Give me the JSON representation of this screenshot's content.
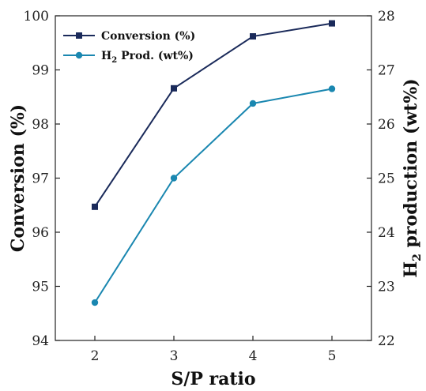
{
  "chart_data": {
    "type": "line",
    "xlabel": "S/P ratio",
    "ylabel_left": "Conversion (%)",
    "ylabel_right": {
      "main": "H",
      "sub": "2",
      "rest": " production (wt%)"
    },
    "x": [
      2,
      3,
      4,
      5
    ],
    "x_ticks": [
      "2",
      "3",
      "4",
      "5"
    ],
    "xlim": [
      1.5,
      5.5
    ],
    "ylim_left": [
      94,
      100
    ],
    "ylim_right": [
      22,
      28
    ],
    "y_ticks_left": [
      "94",
      "95",
      "96",
      "97",
      "98",
      "99",
      "100"
    ],
    "y_ticks_right": [
      "22",
      "23",
      "24",
      "25",
      "26",
      "27",
      "28"
    ],
    "grid": false,
    "legend_position": "top-left",
    "series": [
      {
        "name": "Conversion (%)",
        "axis": "left",
        "marker": "square",
        "color": "#1a2a5a",
        "values": [
          96.47,
          98.66,
          99.62,
          99.86
        ]
      },
      {
        "name": {
          "main": "H",
          "sub": "2",
          "rest": " Prod. (wt%)"
        },
        "axis": "right",
        "marker": "circle",
        "color": "#1a87b0",
        "values": [
          22.7,
          25.0,
          26.38,
          26.65
        ]
      }
    ]
  }
}
